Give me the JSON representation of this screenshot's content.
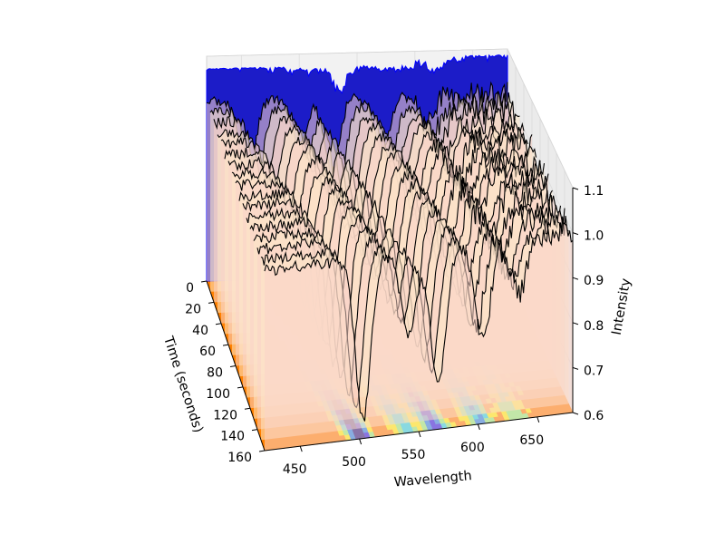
{
  "chart_data": {
    "type": "3d-surface",
    "title": "",
    "xlabel": "Wavelength",
    "ylabel": "Time (seconds)",
    "zlabel": "Intensity",
    "xlim": [
      420,
      680
    ],
    "ylim": [
      0,
      160
    ],
    "zlim": [
      0.6,
      1.1
    ],
    "x_ticks": [
      "450",
      "500",
      "550",
      "600",
      "650"
    ],
    "y_ticks": [
      "0",
      "20",
      "40",
      "60",
      "80",
      "100",
      "120",
      "140",
      "160"
    ],
    "z_ticks": [
      "0.6",
      "0.7",
      "0.8",
      "0.9",
      "1.0",
      "1.1"
    ],
    "x_tick_values": [
      450,
      500,
      550,
      600,
      650
    ],
    "y_tick_values": [
      0,
      20,
      40,
      60,
      80,
      100,
      120,
      140,
      160
    ],
    "z_tick_values": [
      0.6,
      0.7,
      0.8,
      0.9,
      1.0,
      1.1
    ],
    "absorption_dips_nm": [
      {
        "center": 455,
        "depth": 0.36,
        "shift_per_s": 0.3
      },
      {
        "center": 500,
        "depth": 0.18,
        "shift_per_s": 0.26
      },
      {
        "center": 528,
        "depth": 0.3,
        "shift_per_s": 0.24
      },
      {
        "center": 572,
        "depth": 0.22,
        "shift_per_s": 0.2
      },
      {
        "center": 610,
        "depth": 0.12,
        "shift_per_s": 0.15
      }
    ],
    "spectrum_times_s": [
      0,
      10,
      20,
      30,
      40,
      50,
      60,
      70,
      80,
      90,
      100,
      110,
      120,
      130,
      140,
      150,
      160
    ],
    "baseline_intensity": 1.0,
    "projection_colormap": [
      "#000080",
      "#0000ff",
      "#0080ff",
      "#00e0ff",
      "#7fff80",
      "#ffff00",
      "#ff8000",
      "#ff0000"
    ],
    "grid": true,
    "legend": "none"
  }
}
